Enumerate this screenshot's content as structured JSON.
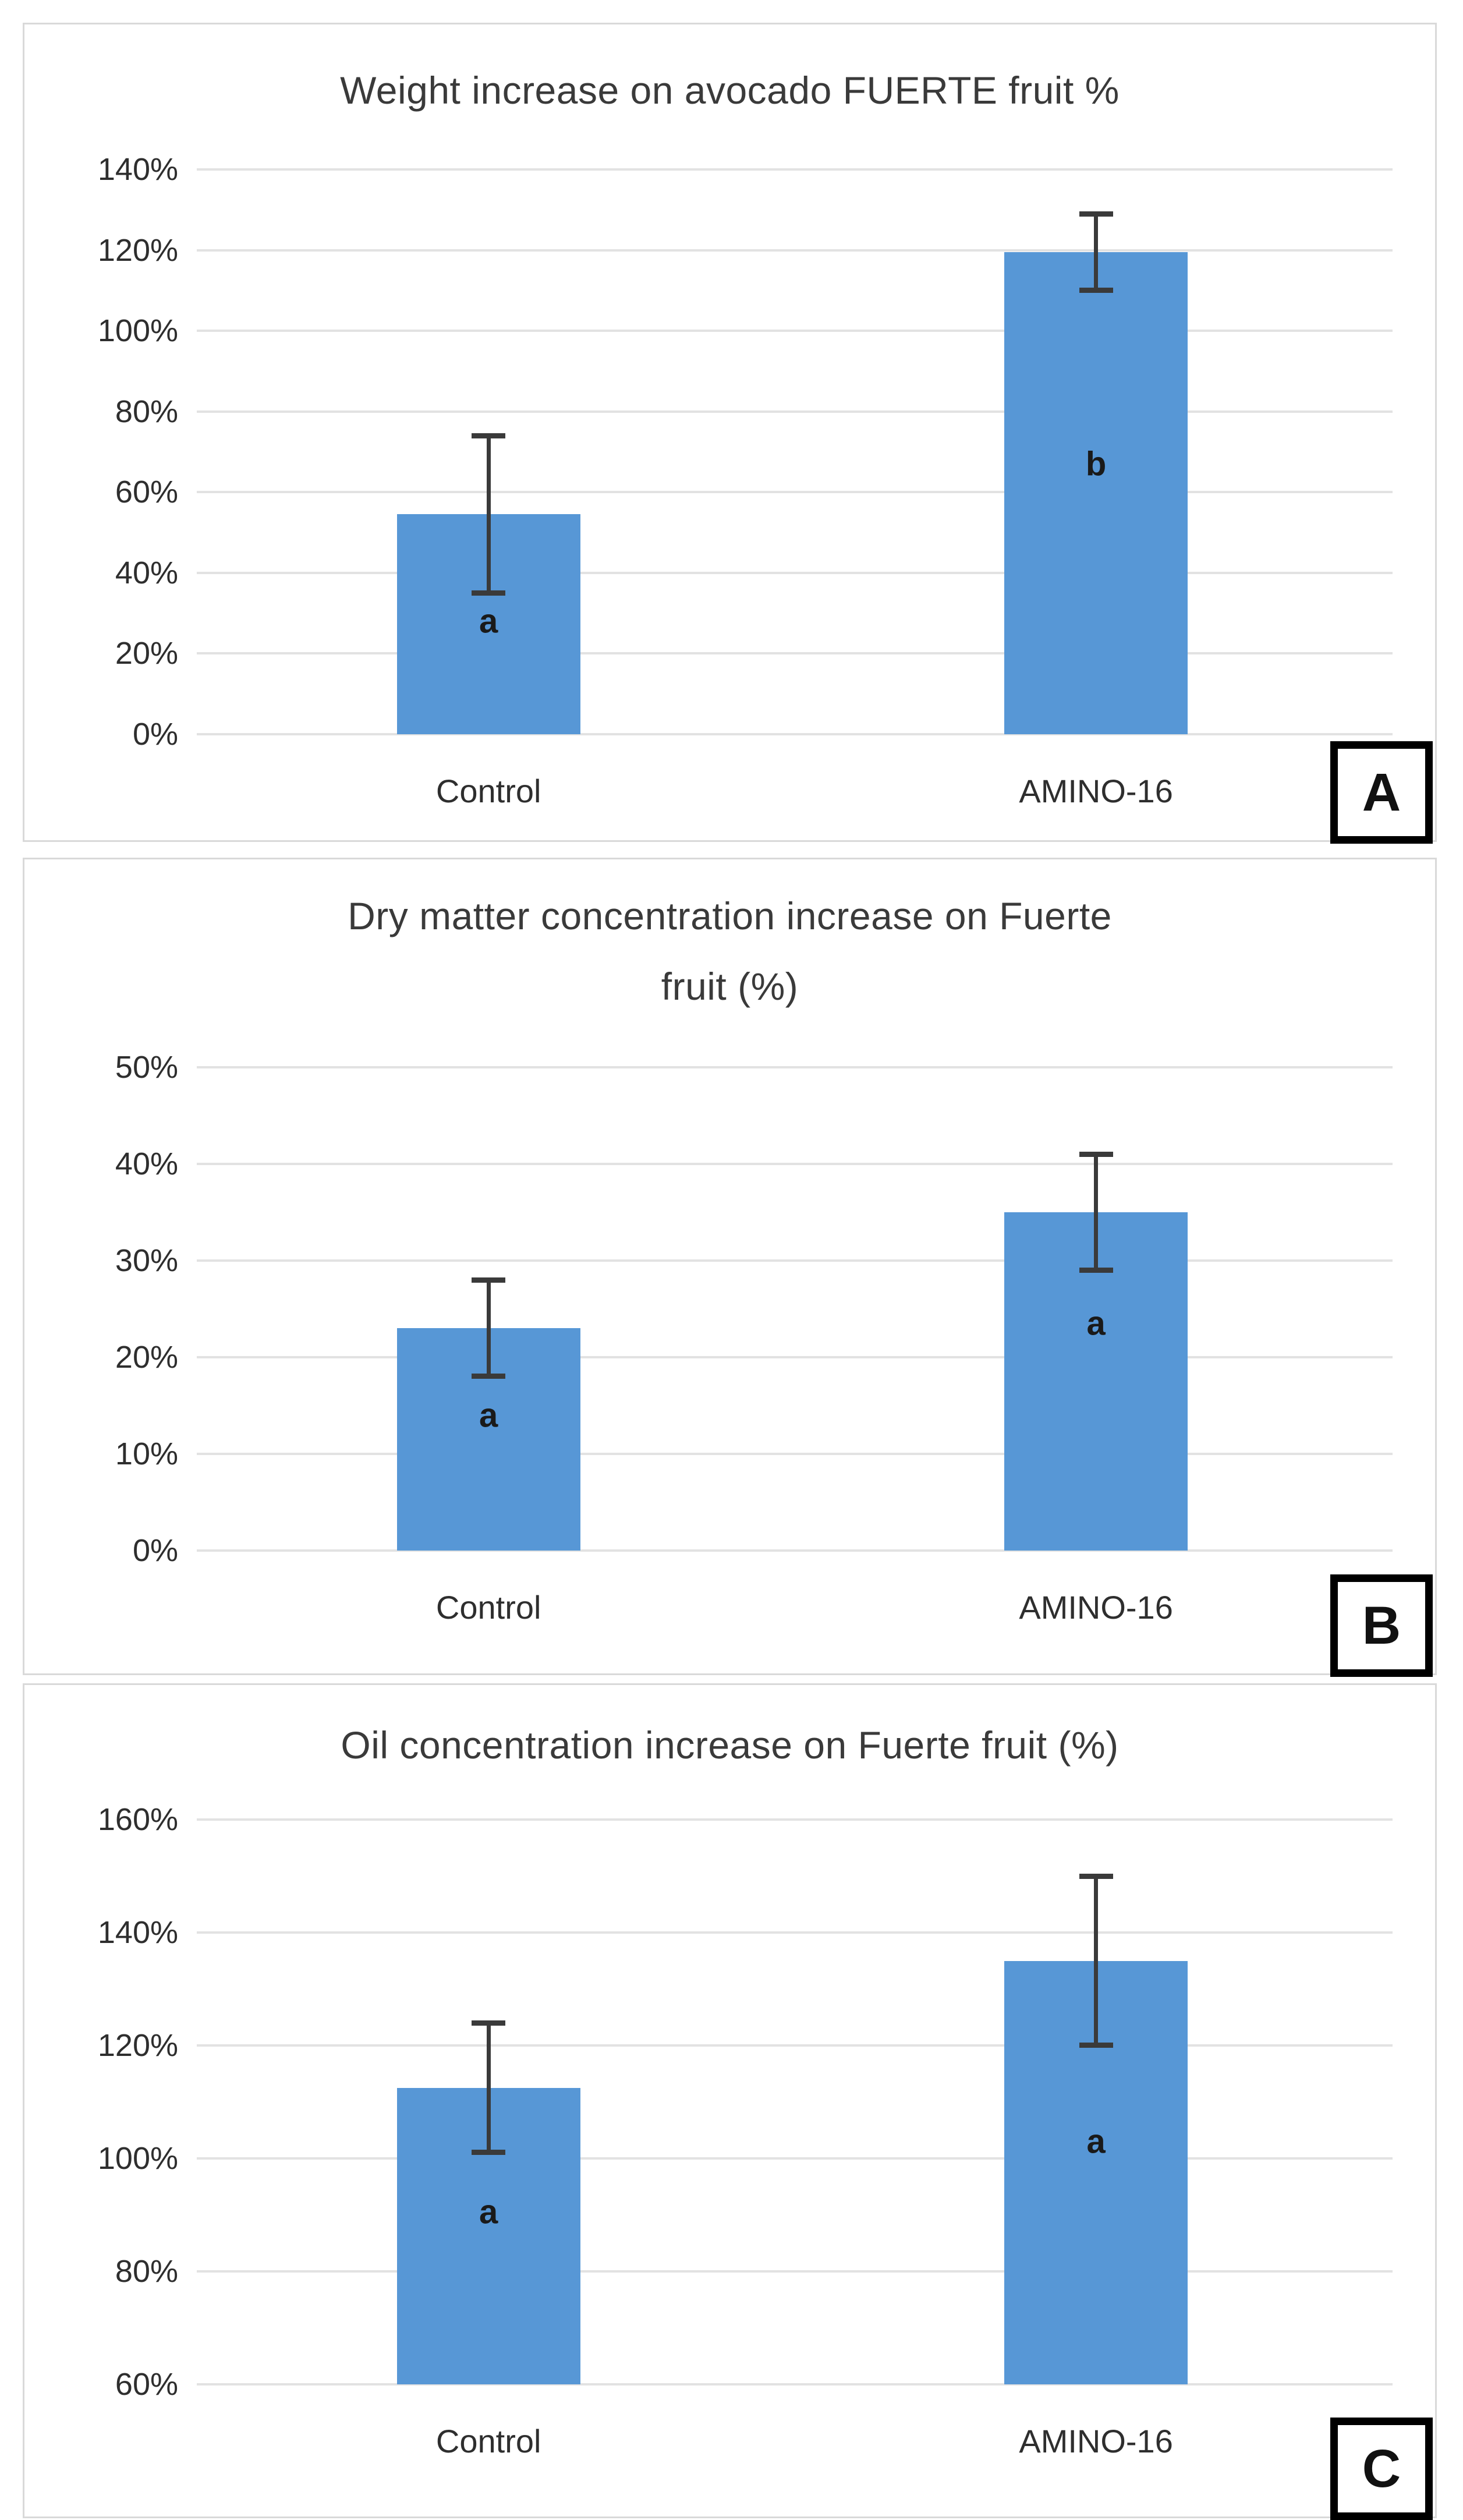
{
  "figure": {
    "background": "#ffffff",
    "panel_labels": [
      "A",
      "B",
      "C"
    ]
  },
  "colors": {
    "bar_fill": "#5797d6",
    "error_bar": "#3a3a3a",
    "gridline": "#e2e2e2",
    "panel_border": "#d9d9d9",
    "title_text": "#3a3a3a",
    "axis_text": "#2e2e2e",
    "letter_box_border": "#000000",
    "letter_box_fill": "#ffffff"
  },
  "chart_data": [
    {
      "type": "bar",
      "panel_label": "A",
      "title": "Weight increase on avocado FUERTE fruit %",
      "title_lines": [
        "Weight increase on avocado FUERTE fruit %"
      ],
      "categories": [
        "Control",
        "AMINO-16"
      ],
      "values": [
        54.5,
        119.5
      ],
      "error_low": [
        35,
        110
      ],
      "error_high": [
        74,
        129
      ],
      "bar_letters": [
        "a",
        "b"
      ],
      "bar_letter_y": [
        28,
        67
      ],
      "ylim": [
        0,
        140
      ],
      "ytick_step": 20,
      "yticks": [
        {
          "value": 140,
          "label": "140%"
        },
        {
          "value": 120,
          "label": "120%"
        },
        {
          "value": 100,
          "label": "100%"
        },
        {
          "value": 80,
          "label": "80%"
        },
        {
          "value": 60,
          "label": "60%"
        },
        {
          "value": 40,
          "label": "40%"
        },
        {
          "value": 20,
          "label": "20%"
        },
        {
          "value": 0,
          "label": "0%"
        }
      ],
      "xlabel": "",
      "ylabel": "",
      "grid": true,
      "legend": false
    },
    {
      "type": "bar",
      "panel_label": "B",
      "title": "Dry matter concentration increase on Fuerte fruit (%)",
      "title_lines": [
        "Dry matter concentration increase on Fuerte",
        "fruit (%)"
      ],
      "categories": [
        "Control",
        "AMINO-16"
      ],
      "values": [
        23,
        35
      ],
      "error_low": [
        18,
        29
      ],
      "error_high": [
        28,
        41
      ],
      "bar_letters": [
        "a",
        "a"
      ],
      "bar_letter_y": [
        14,
        23.5
      ],
      "ylim": [
        0,
        50
      ],
      "ytick_step": 10,
      "yticks": [
        {
          "value": 50,
          "label": "50%"
        },
        {
          "value": 40,
          "label": "40%"
        },
        {
          "value": 30,
          "label": "30%"
        },
        {
          "value": 20,
          "label": "20%"
        },
        {
          "value": 10,
          "label": "10%"
        },
        {
          "value": 0,
          "label": "0%"
        }
      ],
      "xlabel": "",
      "ylabel": "",
      "grid": true,
      "legend": false
    },
    {
      "type": "bar",
      "panel_label": "C",
      "title": "Oil concentration increase on Fuerte fruit (%)",
      "title_lines": [
        "Oil concentration increase on Fuerte fruit (%)"
      ],
      "categories": [
        "Control",
        "AMINO-16"
      ],
      "values": [
        112.5,
        135
      ],
      "error_low": [
        101,
        120
      ],
      "error_high": [
        124,
        150
      ],
      "bar_letters": [
        "a",
        "a"
      ],
      "bar_letter_y": [
        90.5,
        103
      ],
      "ylim": [
        60,
        160
      ],
      "ytick_step": 20,
      "yticks": [
        {
          "value": 160,
          "label": "160%"
        },
        {
          "value": 140,
          "label": "140%"
        },
        {
          "value": 120,
          "label": "120%"
        },
        {
          "value": 100,
          "label": "100%"
        },
        {
          "value": 80,
          "label": "80%"
        },
        {
          "value": 60,
          "label": "60%"
        }
      ],
      "xlabel": "",
      "ylabel": "",
      "grid": true,
      "legend": false
    }
  ]
}
